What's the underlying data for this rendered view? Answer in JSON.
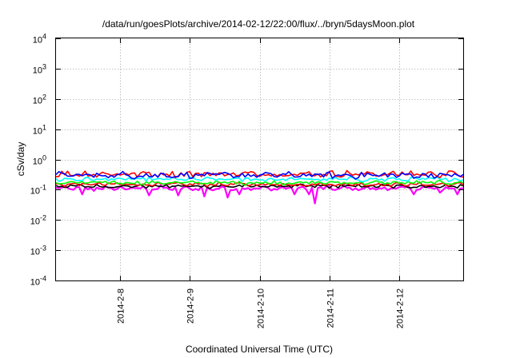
{
  "chart_data": {
    "type": "line",
    "title": "/data/run/goesPlots/archive/2014-02-12/22:00/flux/../bryn/5daysMoon.plot",
    "xlabel": "Coordinated Universal Time (UTC)",
    "ylabel": "cSv/day",
    "yscale": "log",
    "ylim": [
      0.0001,
      10000
    ],
    "yticks": [
      {
        "value": 0.0001,
        "base": "10",
        "exp": "-4"
      },
      {
        "value": 0.001,
        "base": "10",
        "exp": "-3"
      },
      {
        "value": 0.01,
        "base": "10",
        "exp": "-2"
      },
      {
        "value": 0.1,
        "base": "10",
        "exp": "-1"
      },
      {
        "value": 1,
        "base": "10",
        "exp": "0"
      },
      {
        "value": 10,
        "base": "10",
        "exp": "1"
      },
      {
        "value": 100,
        "base": "10",
        "exp": "2"
      },
      {
        "value": 1000,
        "base": "10",
        "exp": "3"
      },
      {
        "value": 10000,
        "base": "10",
        "exp": "4"
      }
    ],
    "xlim": [
      "2014-02-07 02:00",
      "2014-02-12 22:00"
    ],
    "xticks": [
      {
        "date": "2014-02-08",
        "label": "2014-2-8"
      },
      {
        "date": "2014-02-09",
        "label": "2014-2-9"
      },
      {
        "date": "2014-02-10",
        "label": "2014-2-10"
      },
      {
        "date": "2014-02-11",
        "label": "2014-2-11"
      },
      {
        "date": "2014-02-12",
        "label": "2014-2-12"
      }
    ],
    "grid": true,
    "legend": "none",
    "series": [
      {
        "color": "#ff00ff",
        "median": 0.11,
        "spread": 0.16,
        "dips": [
          {
            "x": "2014-02-07 11:00",
            "y": 0.07
          },
          {
            "x": "2014-02-08 10:00",
            "y": 0.065
          },
          {
            "x": "2014-02-08 20:00",
            "y": 0.065
          },
          {
            "x": "2014-02-09 05:00",
            "y": 0.06
          },
          {
            "x": "2014-02-09 13:00",
            "y": 0.055
          },
          {
            "x": "2014-02-09 17:00",
            "y": 0.07
          },
          {
            "x": "2014-02-10 12:00",
            "y": 0.07
          },
          {
            "x": "2014-02-10 17:00",
            "y": 0.07
          },
          {
            "x": "2014-02-10 19:00",
            "y": 0.035
          },
          {
            "x": "2014-02-12 05:00",
            "y": 0.07
          },
          {
            "x": "2014-02-12 14:00",
            "y": 0.08
          },
          {
            "x": "2014-02-12 20:00",
            "y": 0.07
          }
        ]
      },
      {
        "color": "#000000",
        "median": 0.13,
        "spread": 0.12,
        "dips": []
      },
      {
        "color": "#ff0000",
        "median": 0.15,
        "spread": 0.12,
        "dips": []
      },
      {
        "color": "#00ff00",
        "median": 0.17,
        "spread": 0.12,
        "dips": []
      },
      {
        "color": "#00ffff",
        "median": 0.22,
        "spread": 0.14,
        "dips": []
      },
      {
        "color": "#ff0000",
        "median": 0.33,
        "spread": 0.2,
        "dips": []
      },
      {
        "color": "#0000ff",
        "median": 0.3,
        "spread": 0.2,
        "dips": []
      }
    ]
  }
}
